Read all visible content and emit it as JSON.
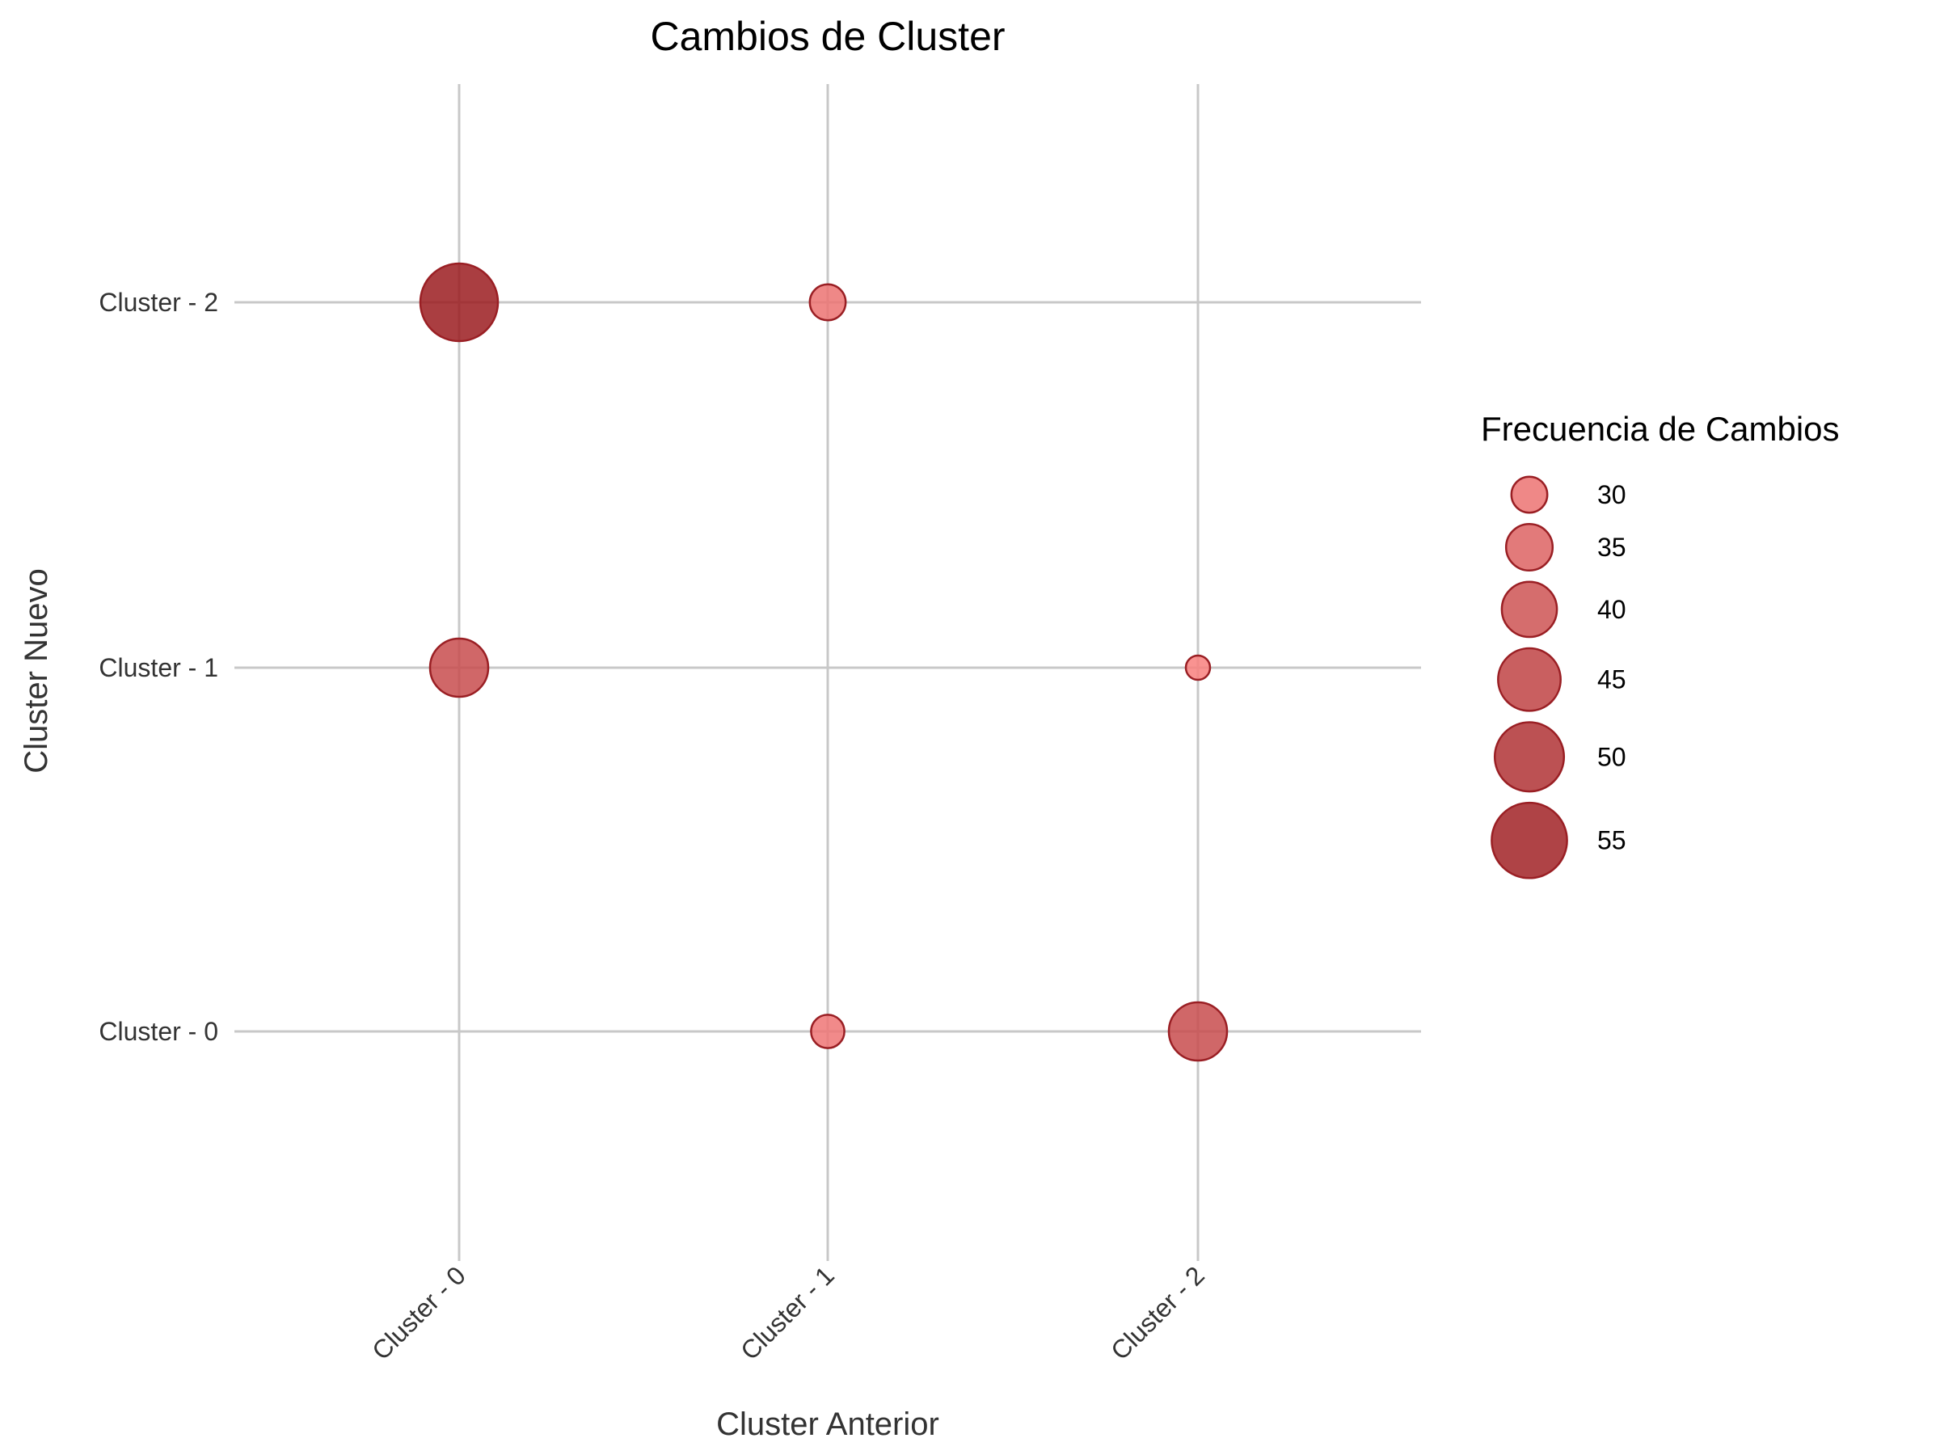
{
  "chart_data": {
    "type": "scatter",
    "title": "Cambios de Cluster",
    "xlabel": "Cluster Anterior",
    "ylabel": "Cluster Nuevo",
    "x_categories": [
      "Cluster - 0",
      "Cluster - 1",
      "Cluster - 2"
    ],
    "y_categories": [
      "Cluster - 0",
      "Cluster - 1",
      "Cluster - 2"
    ],
    "grid": true,
    "legend": {
      "title": "Frecuencia de Cambios",
      "position": "right",
      "values": [
        30,
        35,
        40,
        45,
        50,
        55
      ]
    },
    "size_range": [
      26,
      57
    ],
    "color_low": "#f8807e",
    "color_high": "#9b1c20",
    "points": [
      {
        "x": "Cluster - 0",
        "y": "Cluster - 2",
        "value": 57
      },
      {
        "x": "Cluster - 1",
        "y": "Cluster - 2",
        "value": 30
      },
      {
        "x": "Cluster - 0",
        "y": "Cluster - 1",
        "value": 42
      },
      {
        "x": "Cluster - 2",
        "y": "Cluster - 1",
        "value": 26
      },
      {
        "x": "Cluster - 1",
        "y": "Cluster - 0",
        "value": 29
      },
      {
        "x": "Cluster - 2",
        "y": "Cluster - 0",
        "value": 42
      }
    ]
  }
}
